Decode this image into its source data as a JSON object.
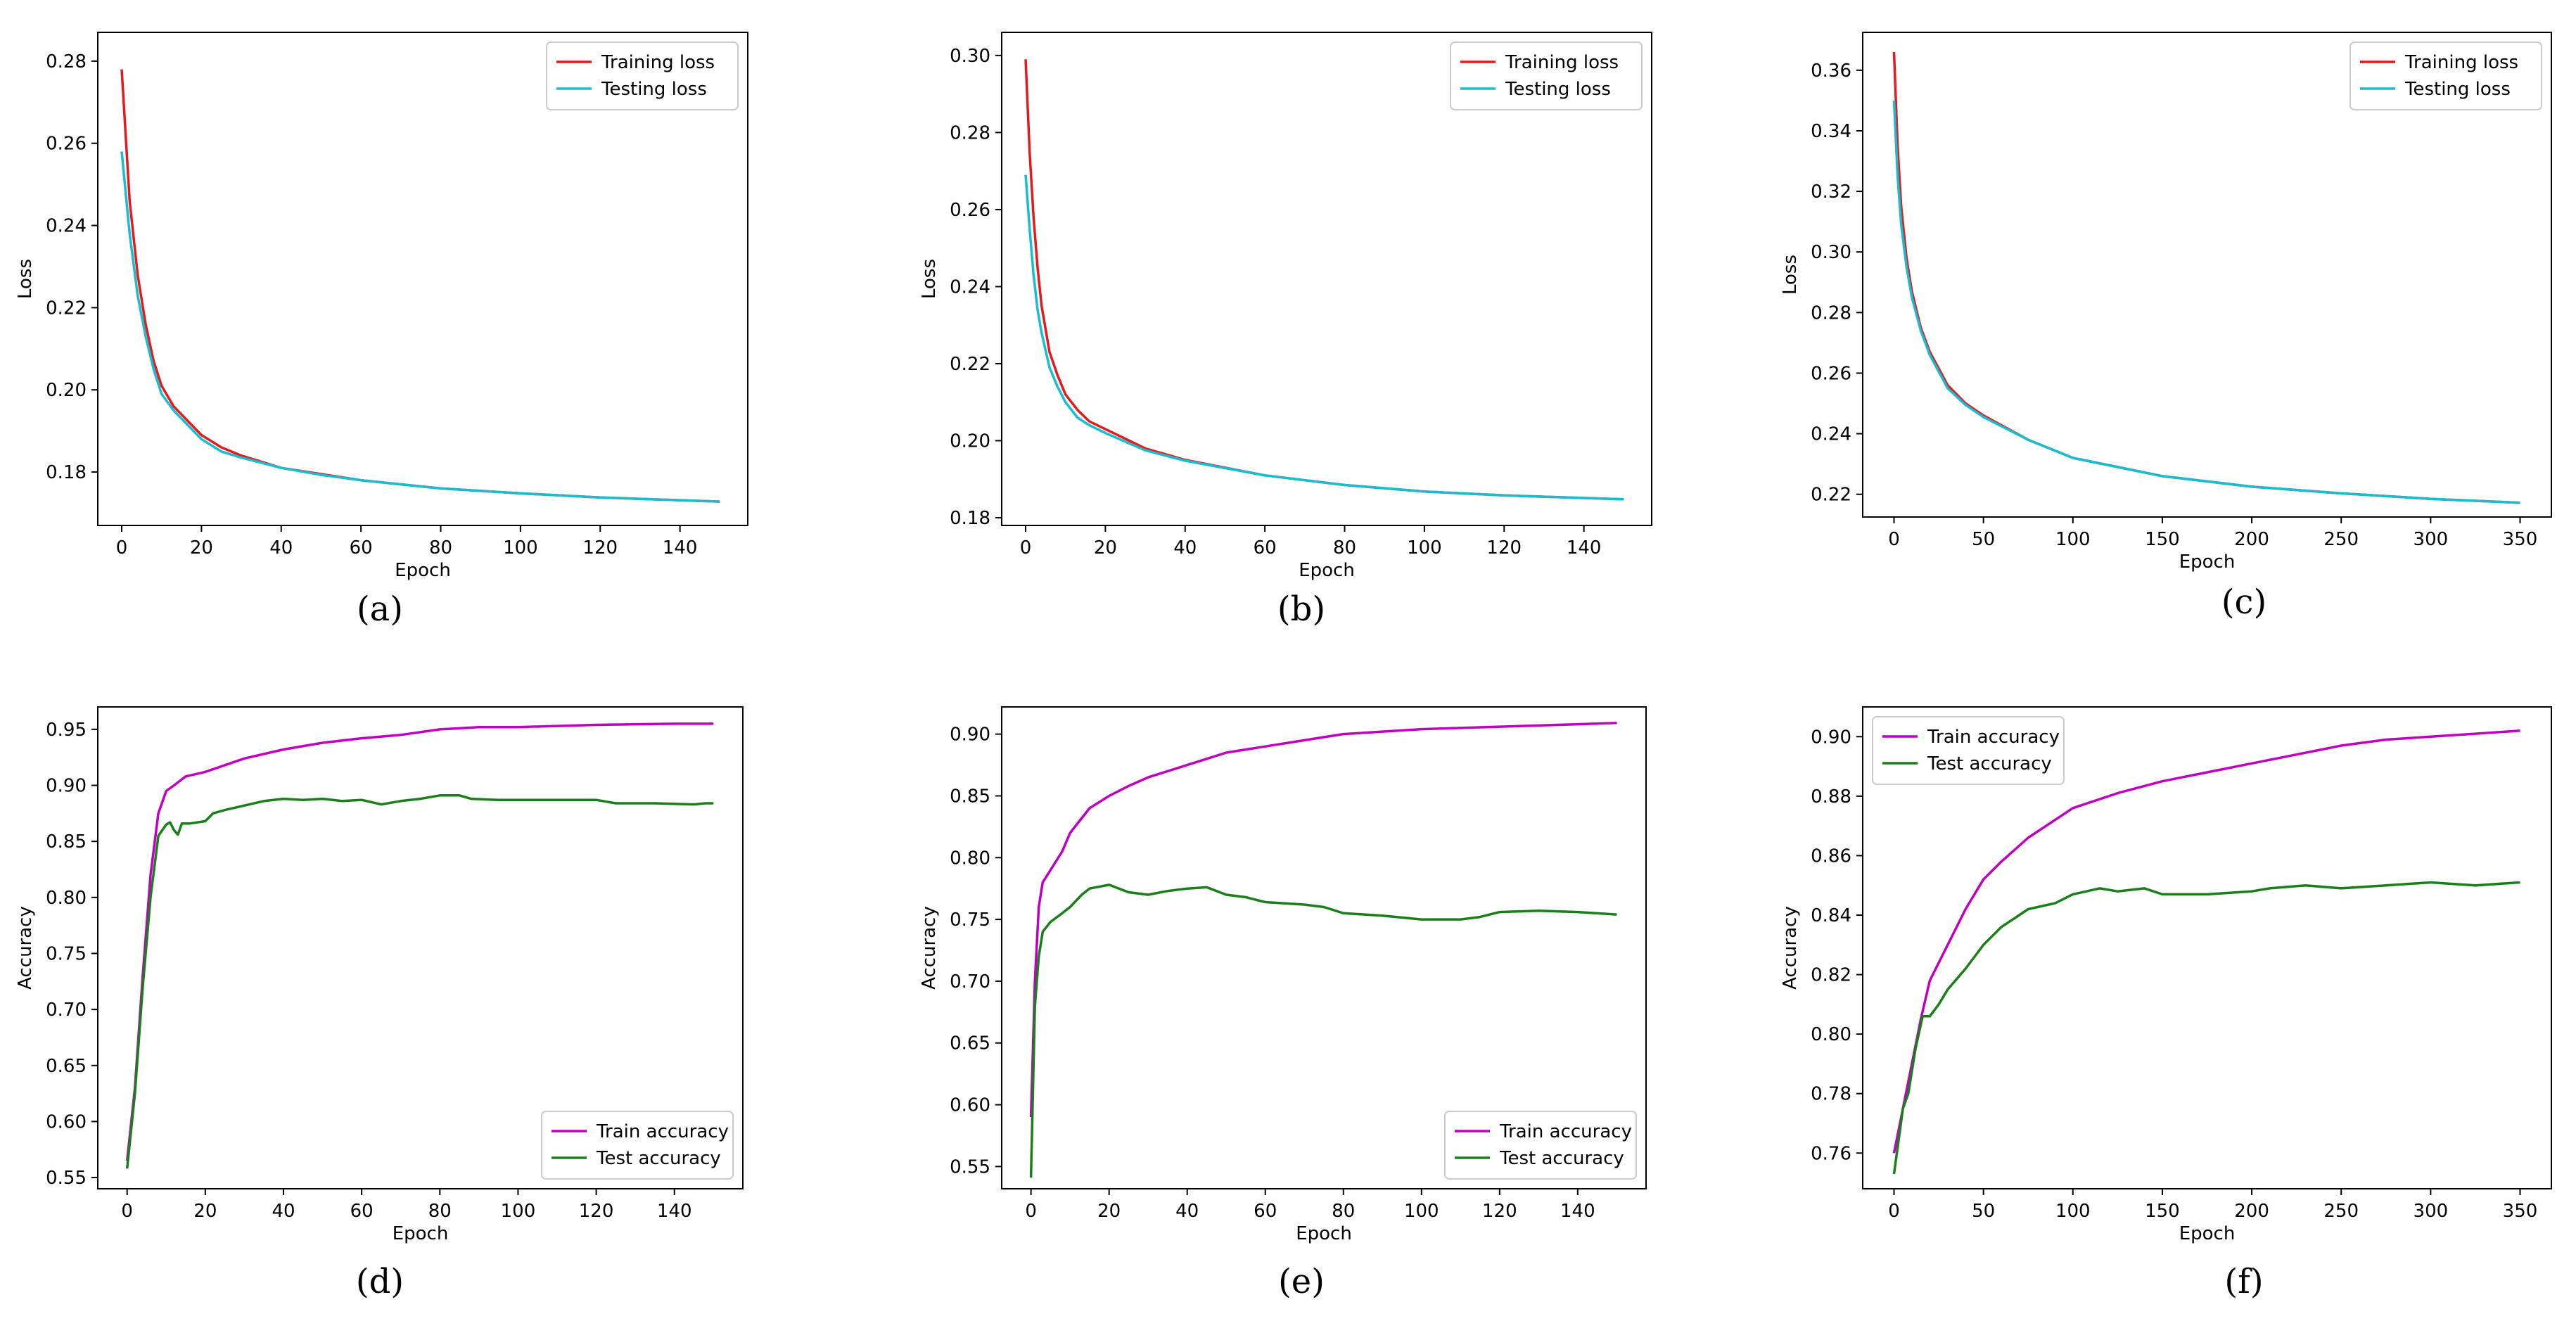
{
  "colors": {
    "train_loss": "#e41a1c",
    "test_loss": "#17becf",
    "train_acc": "#c000c0",
    "test_acc": "#1a7f1a"
  },
  "chart_data": [
    {
      "type": "line",
      "caption": "(a)",
      "xlabel": "Epoch",
      "ylabel": "Loss",
      "xlim": [
        -6,
        157
      ],
      "ylim": [
        0.167,
        0.287
      ],
      "xticks": [
        0,
        20,
        40,
        60,
        80,
        100,
        120,
        140
      ],
      "yticks": [
        0.18,
        0.2,
        0.22,
        0.24,
        0.26,
        0.28
      ],
      "ydecimals": 2,
      "legend_position": "upper-right",
      "series": [
        {
          "name": "Training loss",
          "color_key": "train_loss",
          "x": [
            0,
            2,
            4,
            6,
            8,
            10,
            13,
            16,
            20,
            25,
            30,
            40,
            50,
            60,
            80,
            100,
            120,
            150
          ],
          "y": [
            0.278,
            0.246,
            0.228,
            0.216,
            0.207,
            0.201,
            0.196,
            0.193,
            0.189,
            0.186,
            0.184,
            0.181,
            0.1795,
            0.178,
            0.176,
            0.1748,
            0.1738,
            0.1728
          ]
        },
        {
          "name": "Testing loss",
          "color_key": "test_loss",
          "x": [
            0,
            2,
            4,
            6,
            8,
            10,
            13,
            16,
            20,
            25,
            30,
            40,
            50,
            60,
            80,
            100,
            120,
            150
          ],
          "y": [
            0.258,
            0.238,
            0.223,
            0.213,
            0.205,
            0.199,
            0.195,
            0.192,
            0.188,
            0.185,
            0.1835,
            0.181,
            0.1793,
            0.178,
            0.176,
            0.1748,
            0.1738,
            0.1728
          ]
        }
      ]
    },
    {
      "type": "line",
      "caption": "(b)",
      "xlabel": "Epoch",
      "ylabel": "Loss",
      "xlim": [
        -6,
        157
      ],
      "ylim": [
        0.178,
        0.306
      ],
      "xticks": [
        0,
        20,
        40,
        60,
        80,
        100,
        120,
        140
      ],
      "yticks": [
        0.18,
        0.2,
        0.22,
        0.24,
        0.26,
        0.28,
        0.3
      ],
      "ydecimals": 2,
      "legend_position": "upper-right",
      "series": [
        {
          "name": "Training loss",
          "color_key": "train_loss",
          "x": [
            0,
            1,
            2,
            3,
            4,
            6,
            8,
            10,
            13,
            16,
            20,
            30,
            40,
            60,
            80,
            100,
            120,
            150
          ],
          "y": [
            0.299,
            0.275,
            0.258,
            0.245,
            0.235,
            0.223,
            0.217,
            0.212,
            0.208,
            0.205,
            0.203,
            0.198,
            0.195,
            0.191,
            0.1885,
            0.1868,
            0.1858,
            0.1848
          ]
        },
        {
          "name": "Testing loss",
          "color_key": "test_loss",
          "x": [
            0,
            1,
            2,
            3,
            4,
            6,
            8,
            10,
            13,
            16,
            20,
            30,
            40,
            60,
            80,
            100,
            120,
            150
          ],
          "y": [
            0.269,
            0.255,
            0.243,
            0.234,
            0.228,
            0.219,
            0.214,
            0.21,
            0.206,
            0.204,
            0.202,
            0.1975,
            0.1948,
            0.191,
            0.1885,
            0.1868,
            0.1858,
            0.1848
          ]
        }
      ]
    },
    {
      "type": "line",
      "caption": "(c)",
      "xlabel": "Epoch",
      "ylabel": "Loss",
      "xlim": [
        -17.5,
        367.5
      ],
      "ylim": [
        0.2125,
        0.3725
      ],
      "xticks": [
        0,
        50,
        100,
        150,
        200,
        250,
        300,
        350
      ],
      "yticks": [
        0.22,
        0.24,
        0.26,
        0.28,
        0.3,
        0.32,
        0.34,
        0.36
      ],
      "ydecimals": 2,
      "legend_position": "upper-right",
      "series": [
        {
          "name": "Training loss",
          "color_key": "train_loss",
          "x": [
            0,
            2,
            4,
            7,
            10,
            15,
            20,
            30,
            40,
            50,
            75,
            100,
            150,
            200,
            250,
            300,
            350
          ],
          "y": [
            0.366,
            0.335,
            0.315,
            0.298,
            0.287,
            0.275,
            0.267,
            0.256,
            0.25,
            0.246,
            0.238,
            0.232,
            0.226,
            0.2225,
            0.2203,
            0.2185,
            0.2172
          ]
        },
        {
          "name": "Testing loss",
          "color_key": "test_loss",
          "x": [
            0,
            2,
            4,
            7,
            10,
            15,
            20,
            30,
            40,
            50,
            75,
            100,
            150,
            200,
            250,
            300,
            350
          ],
          "y": [
            0.35,
            0.325,
            0.309,
            0.295,
            0.285,
            0.274,
            0.266,
            0.255,
            0.2495,
            0.2455,
            0.238,
            0.232,
            0.226,
            0.2225,
            0.2203,
            0.2185,
            0.2172
          ]
        }
      ]
    },
    {
      "type": "line",
      "caption": "(d)",
      "xlabel": "Epoch",
      "ylabel": "Accuracy",
      "xlim": [
        -7.5,
        157.5
      ],
      "ylim": [
        0.54,
        0.97
      ],
      "xticks": [
        0,
        20,
        40,
        60,
        80,
        100,
        120,
        140
      ],
      "yticks": [
        0.55,
        0.6,
        0.65,
        0.7,
        0.75,
        0.8,
        0.85,
        0.9,
        0.95
      ],
      "ydecimals": 2,
      "legend_position": "lower-right",
      "series": [
        {
          "name": "Train accuracy",
          "color_key": "train_acc",
          "x": [
            0,
            2,
            4,
            6,
            8,
            10,
            12,
            15,
            20,
            25,
            30,
            40,
            50,
            60,
            70,
            80,
            90,
            100,
            120,
            140,
            150
          ],
          "y": [
            0.565,
            0.63,
            0.73,
            0.82,
            0.875,
            0.895,
            0.9,
            0.908,
            0.912,
            0.918,
            0.924,
            0.932,
            0.938,
            0.942,
            0.945,
            0.95,
            0.952,
            0.952,
            0.954,
            0.955,
            0.955
          ]
        },
        {
          "name": "Test accuracy",
          "color_key": "test_acc",
          "x": [
            0,
            2,
            4,
            6,
            8,
            10,
            11,
            12,
            13,
            14,
            16,
            20,
            22,
            25,
            30,
            35,
            40,
            45,
            50,
            55,
            60,
            65,
            70,
            75,
            80,
            85,
            88,
            95,
            110,
            120,
            125,
            135,
            145,
            148,
            150
          ],
          "y": [
            0.558,
            0.625,
            0.72,
            0.8,
            0.855,
            0.865,
            0.867,
            0.86,
            0.856,
            0.866,
            0.866,
            0.868,
            0.875,
            0.878,
            0.882,
            0.886,
            0.888,
            0.887,
            0.888,
            0.886,
            0.887,
            0.883,
            0.886,
            0.888,
            0.891,
            0.891,
            0.888,
            0.887,
            0.887,
            0.887,
            0.884,
            0.884,
            0.883,
            0.884,
            0.884
          ]
        }
      ]
    },
    {
      "type": "line",
      "caption": "(e)",
      "xlabel": "Epoch",
      "ylabel": "Accuracy",
      "xlim": [
        -7.5,
        157.5
      ],
      "ylim": [
        0.532,
        0.922
      ],
      "xticks": [
        0,
        20,
        40,
        60,
        80,
        100,
        120,
        140
      ],
      "yticks": [
        0.55,
        0.6,
        0.65,
        0.7,
        0.75,
        0.8,
        0.85,
        0.9
      ],
      "ydecimals": 2,
      "legend_position": "lower-right",
      "series": [
        {
          "name": "Train accuracy",
          "color_key": "train_acc",
          "x": [
            0,
            1,
            2,
            3,
            5,
            8,
            10,
            15,
            20,
            25,
            30,
            40,
            50,
            60,
            70,
            80,
            90,
            100,
            120,
            140,
            150
          ],
          "y": [
            0.59,
            0.7,
            0.76,
            0.78,
            0.79,
            0.805,
            0.82,
            0.84,
            0.85,
            0.858,
            0.865,
            0.875,
            0.885,
            0.89,
            0.895,
            0.9,
            0.902,
            0.904,
            0.906,
            0.908,
            0.909
          ]
        },
        {
          "name": "Test accuracy",
          "color_key": "test_acc",
          "x": [
            0,
            1,
            2,
            3,
            5,
            8,
            10,
            13,
            15,
            20,
            25,
            30,
            35,
            40,
            45,
            50,
            55,
            60,
            65,
            70,
            75,
            80,
            90,
            100,
            110,
            115,
            120,
            130,
            140,
            150
          ],
          "y": [
            0.541,
            0.68,
            0.72,
            0.74,
            0.748,
            0.755,
            0.76,
            0.77,
            0.775,
            0.778,
            0.772,
            0.77,
            0.773,
            0.775,
            0.776,
            0.77,
            0.768,
            0.764,
            0.763,
            0.762,
            0.76,
            0.755,
            0.753,
            0.75,
            0.75,
            0.752,
            0.756,
            0.757,
            0.756,
            0.754
          ]
        }
      ]
    },
    {
      "type": "line",
      "caption": "(f)",
      "xlabel": "Epoch",
      "ylabel": "Accuracy",
      "xlim": [
        -17.5,
        367.5
      ],
      "ylim": [
        0.748,
        0.91
      ],
      "xticks": [
        0,
        50,
        100,
        150,
        200,
        250,
        300,
        350
      ],
      "yticks": [
        0.76,
        0.78,
        0.8,
        0.82,
        0.84,
        0.86,
        0.88,
        0.9
      ],
      "ydecimals": 2,
      "legend_position": "upper-left",
      "series": [
        {
          "name": "Train accuracy",
          "color_key": "train_acc",
          "x": [
            0,
            5,
            10,
            15,
            20,
            30,
            40,
            50,
            60,
            75,
            100,
            125,
            150,
            175,
            200,
            225,
            250,
            275,
            300,
            325,
            350
          ],
          "y": [
            0.76,
            0.775,
            0.79,
            0.805,
            0.818,
            0.83,
            0.842,
            0.852,
            0.858,
            0.866,
            0.876,
            0.881,
            0.885,
            0.888,
            0.891,
            0.894,
            0.897,
            0.899,
            0.9,
            0.901,
            0.902
          ]
        },
        {
          "name": "Test accuracy",
          "color_key": "test_acc",
          "x": [
            0,
            5,
            8,
            12,
            16,
            20,
            25,
            30,
            40,
            50,
            60,
            75,
            90,
            100,
            115,
            125,
            140,
            150,
            175,
            200,
            210,
            230,
            250,
            275,
            300,
            325,
            350
          ],
          "y": [
            0.753,
            0.775,
            0.78,
            0.795,
            0.806,
            0.806,
            0.81,
            0.815,
            0.822,
            0.83,
            0.836,
            0.842,
            0.844,
            0.847,
            0.849,
            0.848,
            0.849,
            0.847,
            0.847,
            0.848,
            0.849,
            0.85,
            0.849,
            0.85,
            0.851,
            0.85,
            0.851
          ]
        }
      ]
    }
  ]
}
